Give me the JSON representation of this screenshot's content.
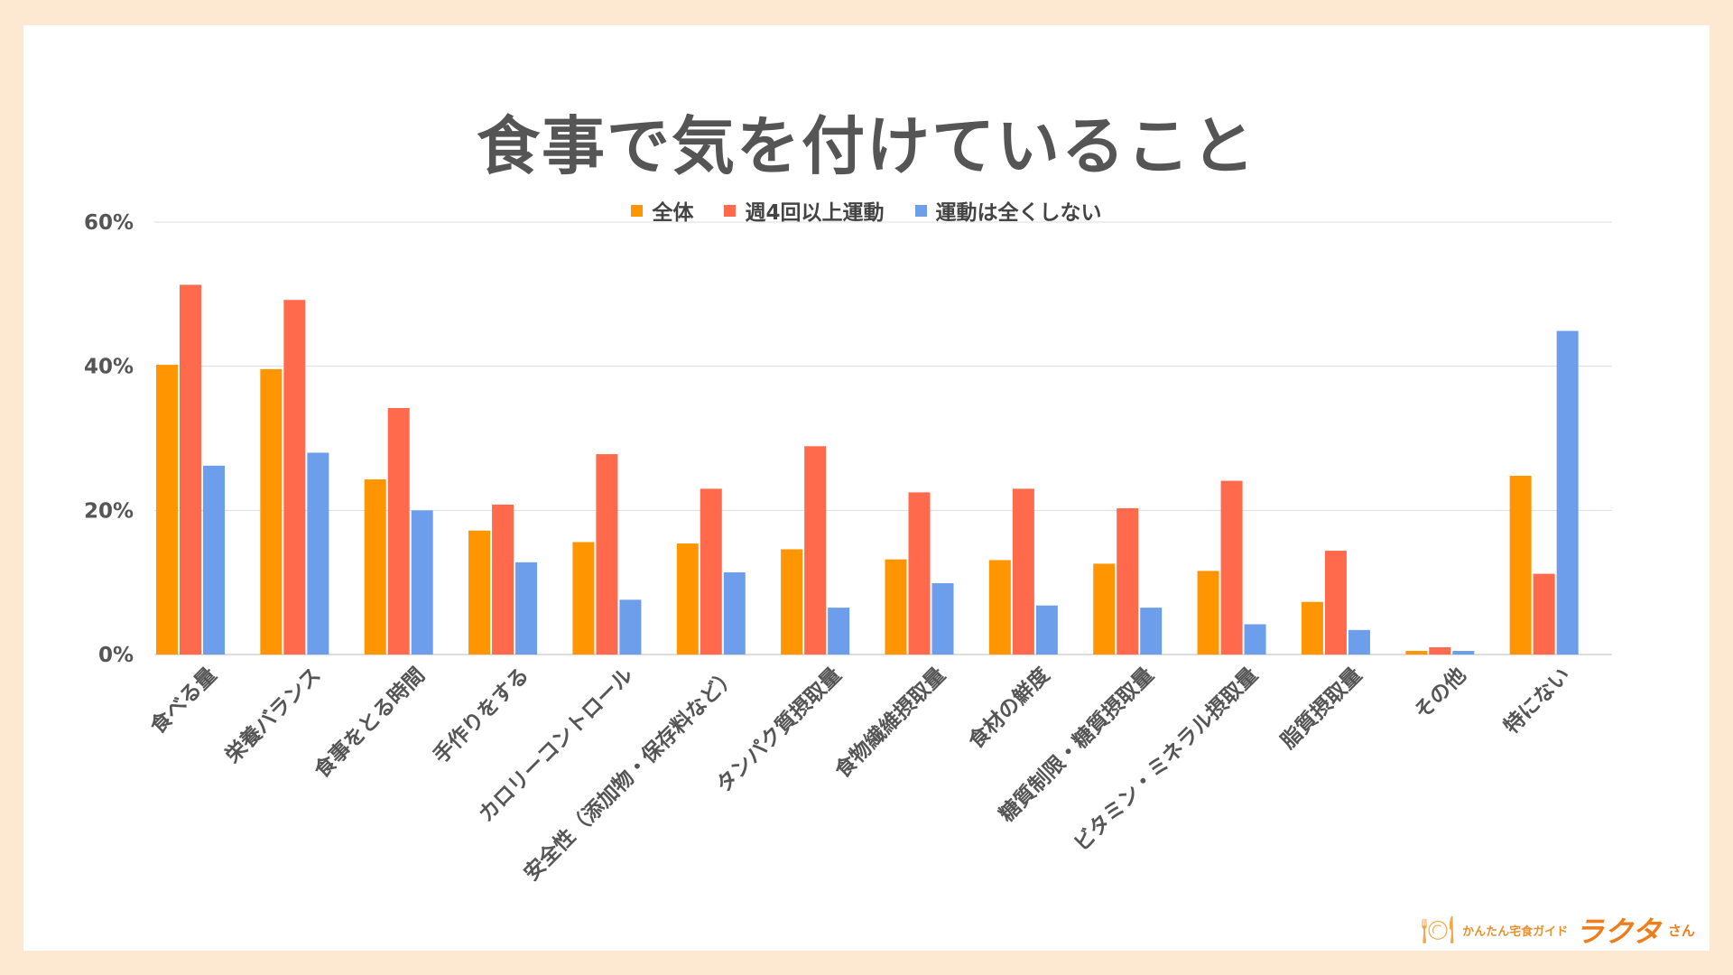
{
  "colors": {
    "background": "#fde9d2",
    "card": "#ffffff",
    "series": [
      "#ff9500",
      "#ff6a4d",
      "#6d9eeb"
    ],
    "grid": "#dddddd",
    "text": "#555555"
  },
  "logo": {
    "icon": "plate-icon",
    "subtitle": "かんたん宅食ガイド",
    "brand": "ラクタ",
    "suffix": "さん"
  },
  "chart_data": {
    "type": "bar",
    "title": "食事で気を付けていること",
    "xlabel": "",
    "ylabel": "",
    "ylim": [
      0,
      60
    ],
    "yticks": [
      0,
      20,
      40,
      60
    ],
    "ytick_labels": [
      "0%",
      "20%",
      "40%",
      "60%"
    ],
    "grid": true,
    "legend_position": "top-center",
    "categories": [
      "食べる量",
      "栄養バランス",
      "食事をとる時間",
      "手作りをする",
      "カロリーコントロール",
      "安全性（添加物・保存料など）",
      "タンパク質摂取量",
      "食物繊維摂取量",
      "食材の鮮度",
      "糖質制限・糖質摂取量",
      "ビタミン・ミネラル摂取量",
      "脂質摂取量",
      "その他",
      "特にない"
    ],
    "series": [
      {
        "name": "全体",
        "values": [
          40.2,
          39.6,
          24.3,
          17.2,
          15.6,
          15.4,
          14.6,
          13.2,
          13.1,
          12.6,
          11.6,
          7.3,
          0.5,
          24.8
        ]
      },
      {
        "name": "週4回以上運動",
        "values": [
          51.3,
          49.2,
          34.2,
          20.8,
          27.8,
          23.0,
          28.9,
          22.5,
          23.0,
          20.3,
          24.1,
          14.4,
          1.0,
          11.2
        ]
      },
      {
        "name": "運動は全くしない",
        "values": [
          26.2,
          28.0,
          20.0,
          12.8,
          7.6,
          11.4,
          6.5,
          9.9,
          6.8,
          6.5,
          4.2,
          3.4,
          0.5,
          44.9
        ]
      }
    ]
  }
}
